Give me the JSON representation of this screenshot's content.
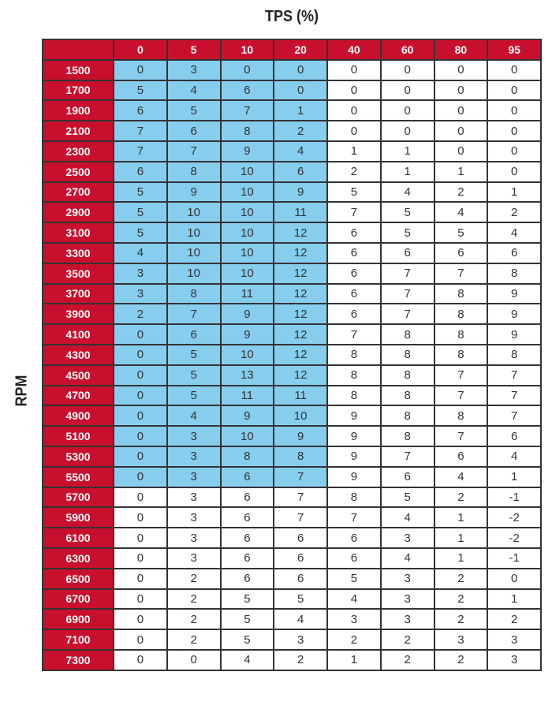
{
  "chart_data": {
    "type": "table",
    "title": "TPS (%)",
    "ylabel": "RPM",
    "colors": {
      "header": "#c8102e",
      "highlight": "#87ceee",
      "cell": "#ffffff"
    },
    "highlight": "TPS 0–20 columns for RPM 1500–5500",
    "columns": [
      "0",
      "5",
      "10",
      "20",
      "40",
      "60",
      "80",
      "95"
    ],
    "rows": [
      {
        "rpm": "1500",
        "values": [
          0,
          3,
          0,
          0,
          0,
          0,
          0,
          0
        ],
        "highlight": true
      },
      {
        "rpm": "1700",
        "values": [
          5,
          4,
          6,
          0,
          0,
          0,
          0,
          0
        ],
        "highlight": true
      },
      {
        "rpm": "1900",
        "values": [
          6,
          5,
          7,
          1,
          0,
          0,
          0,
          0
        ],
        "highlight": true
      },
      {
        "rpm": "2100",
        "values": [
          7,
          6,
          8,
          2,
          0,
          0,
          0,
          0
        ],
        "highlight": true
      },
      {
        "rpm": "2300",
        "values": [
          7,
          7,
          9,
          4,
          1,
          1,
          0,
          0
        ],
        "highlight": true
      },
      {
        "rpm": "2500",
        "values": [
          6,
          8,
          10,
          6,
          2,
          1,
          1,
          0
        ],
        "highlight": true
      },
      {
        "rpm": "2700",
        "values": [
          5,
          9,
          10,
          9,
          5,
          4,
          2,
          1
        ],
        "highlight": true
      },
      {
        "rpm": "2900",
        "values": [
          5,
          10,
          10,
          11,
          7,
          5,
          4,
          2
        ],
        "highlight": true
      },
      {
        "rpm": "3100",
        "values": [
          5,
          10,
          10,
          12,
          6,
          5,
          5,
          4
        ],
        "highlight": true
      },
      {
        "rpm": "3300",
        "values": [
          4,
          10,
          10,
          12,
          6,
          6,
          6,
          6
        ],
        "highlight": true
      },
      {
        "rpm": "3500",
        "values": [
          3,
          10,
          10,
          12,
          6,
          7,
          7,
          8
        ],
        "highlight": true
      },
      {
        "rpm": "3700",
        "values": [
          3,
          8,
          11,
          12,
          6,
          7,
          8,
          9
        ],
        "highlight": true
      },
      {
        "rpm": "3900",
        "values": [
          2,
          7,
          9,
          12,
          6,
          7,
          8,
          9
        ],
        "highlight": true
      },
      {
        "rpm": "4100",
        "values": [
          0,
          6,
          9,
          12,
          7,
          8,
          8,
          9
        ],
        "highlight": true
      },
      {
        "rpm": "4300",
        "values": [
          0,
          5,
          10,
          12,
          8,
          8,
          8,
          8
        ],
        "highlight": true
      },
      {
        "rpm": "4500",
        "values": [
          0,
          5,
          13,
          12,
          8,
          8,
          7,
          7
        ],
        "highlight": true
      },
      {
        "rpm": "4700",
        "values": [
          0,
          5,
          11,
          11,
          8,
          8,
          7,
          7
        ],
        "highlight": true
      },
      {
        "rpm": "4900",
        "values": [
          0,
          4,
          9,
          10,
          9,
          8,
          8,
          7
        ],
        "highlight": true
      },
      {
        "rpm": "5100",
        "values": [
          0,
          3,
          10,
          9,
          9,
          8,
          7,
          6
        ],
        "highlight": true
      },
      {
        "rpm": "5300",
        "values": [
          0,
          3,
          8,
          8,
          9,
          7,
          6,
          4
        ],
        "highlight": true
      },
      {
        "rpm": "5500",
        "values": [
          0,
          3,
          6,
          7,
          9,
          6,
          4,
          1
        ],
        "highlight": true
      },
      {
        "rpm": "5700",
        "values": [
          0,
          3,
          6,
          7,
          8,
          5,
          2,
          -1
        ],
        "highlight": false
      },
      {
        "rpm": "5900",
        "values": [
          0,
          3,
          6,
          7,
          7,
          4,
          1,
          -2
        ],
        "highlight": false
      },
      {
        "rpm": "6100",
        "values": [
          0,
          3,
          6,
          6,
          6,
          3,
          1,
          -2
        ],
        "highlight": false
      },
      {
        "rpm": "6300",
        "values": [
          0,
          3,
          6,
          6,
          6,
          4,
          1,
          -1
        ],
        "highlight": false
      },
      {
        "rpm": "6500",
        "values": [
          0,
          2,
          6,
          6,
          5,
          3,
          2,
          0
        ],
        "highlight": false
      },
      {
        "rpm": "6700",
        "values": [
          0,
          2,
          5,
          5,
          4,
          3,
          2,
          1
        ],
        "highlight": false
      },
      {
        "rpm": "6900",
        "values": [
          0,
          2,
          5,
          4,
          3,
          3,
          2,
          2
        ],
        "highlight": false
      },
      {
        "rpm": "7100",
        "values": [
          0,
          2,
          5,
          3,
          2,
          2,
          3,
          3
        ],
        "highlight": false
      },
      {
        "rpm": "7300",
        "values": [
          0,
          0,
          4,
          2,
          1,
          2,
          2,
          3
        ],
        "highlight": false
      }
    ]
  }
}
